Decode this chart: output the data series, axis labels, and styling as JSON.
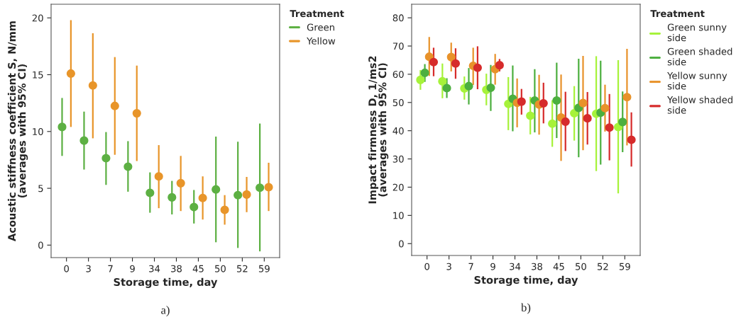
{
  "chart_data": [
    {
      "type": "scatter",
      "xlabel": "Storage time, day",
      "ylabel": "Acoustic stiffness coefficient S, N/mm\n(averages with 95% CI)",
      "legend_title": "Treatment",
      "legend": "right",
      "grid": false,
      "marker": "circle",
      "categories": [
        "0",
        "3",
        "7",
        "9",
        "34",
        "38",
        "45",
        "50",
        "52",
        "59"
      ],
      "ylim": [
        -1.1,
        21.2
      ],
      "yticks": [
        0,
        5,
        10,
        15,
        20
      ],
      "series": [
        {
          "name": "Green",
          "color": "#5db043",
          "values": [
            10.4,
            9.2,
            7.65,
            6.9,
            4.6,
            4.2,
            3.35,
            4.9,
            4.4,
            5.05
          ],
          "errors": [
            [
              7.85,
              12.95
            ],
            [
              6.65,
              11.75
            ],
            [
              5.3,
              9.95
            ],
            [
              4.7,
              9.15
            ],
            [
              2.85,
              6.4
            ],
            [
              2.7,
              5.65
            ],
            [
              1.9,
              4.85
            ],
            [
              0.25,
              9.55
            ],
            [
              -0.25,
              9.1
            ],
            [
              -0.55,
              10.7
            ]
          ]
        },
        {
          "name": "Yellow",
          "color": "#e8952a",
          "values": [
            15.1,
            14.05,
            12.25,
            11.6,
            6.05,
            5.45,
            4.15,
            3.1,
            4.45,
            5.1
          ],
          "errors": [
            [
              10.4,
              19.8
            ],
            [
              9.4,
              18.65
            ],
            [
              7.95,
              16.55
            ],
            [
              7.4,
              15.8
            ],
            [
              3.25,
              8.8
            ],
            [
              3.0,
              7.85
            ],
            [
              2.25,
              6.05
            ],
            [
              1.8,
              4.4
            ],
            [
              2.9,
              6.0
            ],
            [
              3.0,
              7.25
            ]
          ]
        }
      ],
      "annotations": [
        "a)"
      ]
    },
    {
      "type": "scatter",
      "xlabel": "Storage time, day",
      "ylabel": "Impact firmness D, 1/ms2\n(averages with 95% CI)",
      "legend_title": "Treatment",
      "legend": "right",
      "grid": false,
      "marker": "circle",
      "categories": [
        "0",
        "3",
        "7",
        "9",
        "34",
        "38",
        "45",
        "50",
        "52",
        "59"
      ],
      "ylim": [
        -4.2,
        84.8
      ],
      "yticks": [
        0,
        10,
        20,
        30,
        40,
        50,
        60,
        70,
        80
      ],
      "series": [
        {
          "name": "Green sunny\nside",
          "color": "#a6f23a",
          "values": [
            58,
            57.5,
            55,
            54.5,
            49.5,
            45.3,
            42.5,
            46.2,
            46,
            41.3
          ],
          "errors": [
            [
              54.5,
              61.5
            ],
            [
              51.5,
              63.8
            ],
            [
              51,
              59.2
            ],
            [
              49,
              60.2
            ],
            [
              40.2,
              59
            ],
            [
              38.7,
              52
            ],
            [
              34.3,
              50.8
            ],
            [
              36.5,
              55.8
            ],
            [
              25.7,
              66.4
            ],
            [
              17.8,
              65
            ]
          ]
        },
        {
          "name": "Green shaded\nside",
          "color": "#4caf3f",
          "values": [
            60.5,
            55.1,
            55.8,
            55.2,
            51.3,
            50.7,
            50.7,
            48.1,
            46.4,
            43.1
          ],
          "errors": [
            [
              57.3,
              63.6
            ],
            [
              51.6,
              58.6
            ],
            [
              49.3,
              62.2
            ],
            [
              47,
              63.3
            ],
            [
              39.8,
              63.1
            ],
            [
              39.4,
              61.8
            ],
            [
              37.4,
              64.1
            ],
            [
              30.6,
              65.5
            ],
            [
              28,
              64.8
            ],
            [
              32.4,
              53.9
            ]
          ]
        },
        {
          "name": "Yellow sunny\nside",
          "color": "#e8922a",
          "values": [
            66.2,
            66.1,
            63,
            61.8,
            49.9,
            49.3,
            44.7,
            49.8,
            48,
            51.9
          ],
          "errors": [
            [
              59.4,
              73.2
            ],
            [
              61,
              71.2
            ],
            [
              56.2,
              69.4
            ],
            [
              56.3,
              67.2
            ],
            [
              41.2,
              58.5
            ],
            [
              38.6,
              59.8
            ],
            [
              29.3,
              59.9
            ],
            [
              33.1,
              66.5
            ],
            [
              39.7,
              56.3
            ],
            [
              34.8,
              69
            ]
          ]
        },
        {
          "name": "Yellow shaded\nside",
          "color": "#d62b2b",
          "values": [
            64.3,
            63.8,
            62.3,
            63.2,
            50.3,
            49.7,
            43.2,
            44.4,
            41.1,
            36.8
          ],
          "errors": [
            [
              59.3,
              69.4
            ],
            [
              58.4,
              69.2
            ],
            [
              54.7,
              69.9
            ],
            [
              61,
              65.4
            ],
            [
              45.7,
              54.8
            ],
            [
              42.6,
              57
            ],
            [
              32.8,
              53.8
            ],
            [
              35.1,
              53.7
            ],
            [
              29.5,
              53
            ],
            [
              27.3,
              46.5
            ]
          ]
        }
      ],
      "annotations": [
        "b)"
      ]
    }
  ]
}
